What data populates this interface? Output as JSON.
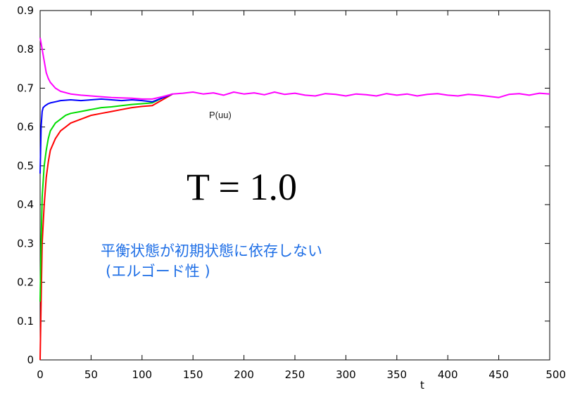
{
  "chart_data": {
    "type": "line",
    "title": "",
    "xlabel": "t",
    "ylabel": "",
    "xlim": [
      0,
      500
    ],
    "ylim": [
      0,
      0.9
    ],
    "xticks": [
      0,
      50,
      100,
      150,
      200,
      250,
      300,
      350,
      400,
      450,
      500
    ],
    "yticks": [
      0,
      0.1,
      0.2,
      0.3,
      0.4,
      0.5,
      0.6,
      0.7,
      0.8,
      0.9
    ],
    "xtick_labels": [
      "0",
      "50",
      "100",
      "150",
      "200",
      "250",
      "300",
      "350",
      "400",
      "450",
      "500"
    ],
    "ytick_labels": [
      "0",
      "0.1",
      "0.2",
      "0.3",
      "0.4",
      "0.5",
      "0.6",
      "0.7",
      "0.8",
      "0.9"
    ],
    "grid": false,
    "series": [
      {
        "color": "#ff0000",
        "x": [
          0,
          1,
          2,
          4,
          6,
          8,
          10,
          15,
          20,
          25,
          30,
          40,
          50,
          60,
          70,
          80,
          90,
          100,
          110,
          120,
          130
        ],
        "y": [
          0.0,
          0.15,
          0.3,
          0.4,
          0.47,
          0.51,
          0.54,
          0.57,
          0.59,
          0.6,
          0.61,
          0.62,
          0.63,
          0.635,
          0.64,
          0.645,
          0.65,
          0.653,
          0.655,
          0.67,
          0.685
        ]
      },
      {
        "color": "#00dd00",
        "x": [
          0,
          1,
          2,
          4,
          6,
          8,
          10,
          15,
          20,
          25,
          30,
          40,
          50,
          60,
          70,
          80,
          90,
          100,
          110,
          120,
          130
        ],
        "y": [
          0.15,
          0.3,
          0.42,
          0.5,
          0.54,
          0.57,
          0.59,
          0.61,
          0.62,
          0.63,
          0.635,
          0.64,
          0.645,
          0.65,
          0.652,
          0.655,
          0.658,
          0.66,
          0.662,
          0.675,
          0.685
        ]
      },
      {
        "color": "#0000ff",
        "x": [
          0,
          1,
          2,
          3,
          5,
          8,
          10,
          15,
          20,
          30,
          40,
          50,
          60,
          70,
          80,
          90,
          100,
          110,
          120,
          130
        ],
        "y": [
          0.48,
          0.6,
          0.64,
          0.65,
          0.655,
          0.66,
          0.662,
          0.665,
          0.668,
          0.67,
          0.668,
          0.67,
          0.672,
          0.67,
          0.668,
          0.67,
          0.668,
          0.665,
          0.675,
          0.685
        ]
      },
      {
        "color": "#ff00ff",
        "x": [
          0,
          2,
          4,
          6,
          8,
          10,
          15,
          20,
          30,
          40,
          50,
          60,
          70,
          80,
          90,
          100,
          110,
          120,
          130,
          140,
          150,
          160,
          170,
          180,
          190,
          200,
          210,
          220,
          230,
          240,
          250,
          260,
          270,
          280,
          290,
          300,
          310,
          320,
          330,
          340,
          350,
          360,
          370,
          380,
          390,
          400,
          410,
          420,
          430,
          440,
          450,
          460,
          470,
          480,
          490,
          500
        ],
        "y": [
          0.83,
          0.8,
          0.77,
          0.74,
          0.725,
          0.715,
          0.7,
          0.692,
          0.685,
          0.682,
          0.68,
          0.678,
          0.676,
          0.675,
          0.674,
          0.672,
          0.672,
          0.678,
          0.685,
          0.687,
          0.69,
          0.685,
          0.688,
          0.682,
          0.69,
          0.685,
          0.688,
          0.683,
          0.69,
          0.684,
          0.687,
          0.682,
          0.68,
          0.686,
          0.684,
          0.68,
          0.685,
          0.683,
          0.68,
          0.686,
          0.682,
          0.685,
          0.68,
          0.684,
          0.686,
          0.682,
          0.68,
          0.684,
          0.682,
          0.679,
          0.676,
          0.684,
          0.686,
          0.682,
          0.687,
          0.685
        ]
      }
    ],
    "annotations": {
      "series_label": "P(uu)",
      "temperature": "T = 1.0",
      "note_line1": "平衡状態が初期状態に依存しない",
      "note_line2": "(エルゴード性 )"
    }
  }
}
